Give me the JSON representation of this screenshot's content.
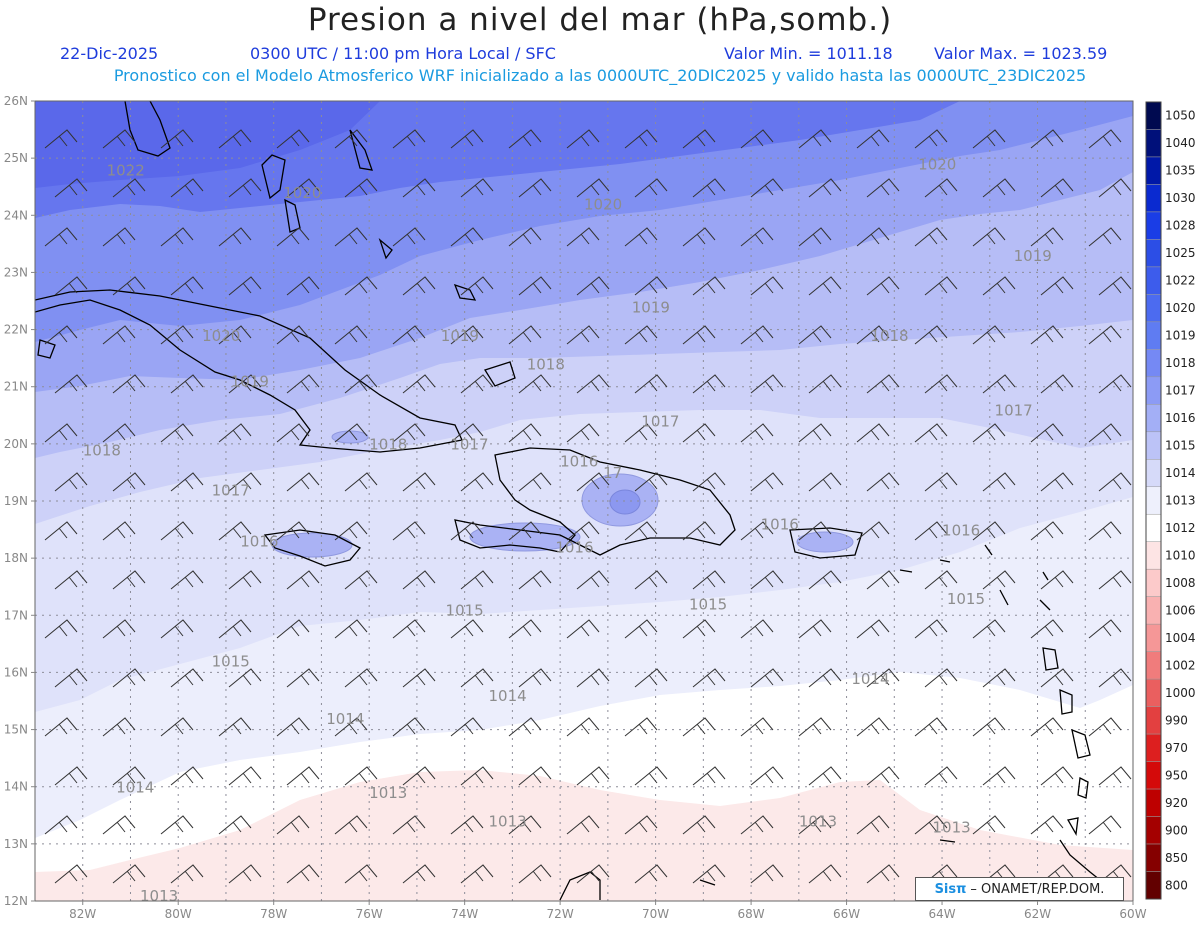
{
  "header": {
    "title": "Presion a nivel del mar (hPa,somb.)",
    "date": "22-Dic-2025",
    "time": "0300 UTC / 11:00 pm Hora Local / SFC",
    "min_label": "Valor Min. = 1011.18",
    "max_label": "Valor Max. = 1023.59",
    "subtitle": "Pronostico con el Modelo Atmosferico WRF inicializado a las 0000UTC_20DIC2025 y valido hasta las  0000UTC_23DIC2025"
  },
  "axes": {
    "lat_labels": [
      "26N",
      "25N",
      "24N",
      "23N",
      "22N",
      "21N",
      "20N",
      "19N",
      "18N",
      "17N",
      "16N",
      "15N",
      "14N",
      "13N",
      "12N"
    ],
    "lon_labels": [
      "82W",
      "80W",
      "78W",
      "76W",
      "74W",
      "72W",
      "70W",
      "68W",
      "66W",
      "64W",
      "62W",
      "60W"
    ]
  },
  "isobars": [
    {
      "value": "1022",
      "lon": -81.5,
      "lat": 24.7
    },
    {
      "value": "1020",
      "lon": -77.8,
      "lat": 24.3
    },
    {
      "value": "1020",
      "lon": -71.5,
      "lat": 24.1
    },
    {
      "value": "1020",
      "lon": -64.5,
      "lat": 24.8
    },
    {
      "value": "1019",
      "lon": -62.5,
      "lat": 23.2
    },
    {
      "value": "1019",
      "lon": -70.5,
      "lat": 22.3
    },
    {
      "value": "1019",
      "lon": -74.5,
      "lat": 21.8
    },
    {
      "value": "1020",
      "lon": -79.5,
      "lat": 21.8
    },
    {
      "value": "1019",
      "lon": -78.9,
      "lat": 21.0
    },
    {
      "value": "1018",
      "lon": -72.7,
      "lat": 21.3
    },
    {
      "value": "1018",
      "lon": -65.5,
      "lat": 21.8
    },
    {
      "value": "1017",
      "lon": -70.3,
      "lat": 20.3
    },
    {
      "value": "1017",
      "lon": -62.9,
      "lat": 20.5
    },
    {
      "value": "1017",
      "lon": -74.3,
      "lat": 19.9
    },
    {
      "value": "1018",
      "lon": -76.0,
      "lat": 19.9
    },
    {
      "value": "1018",
      "lon": -82.0,
      "lat": 19.8
    },
    {
      "value": "1017",
      "lon": -79.3,
      "lat": 19.1
    },
    {
      "value": "1016",
      "lon": -72.0,
      "lat": 19.6
    },
    {
      "value": "17",
      "lon": -71.1,
      "lat": 19.4
    },
    {
      "value": "1016",
      "lon": -78.7,
      "lat": 18.2
    },
    {
      "value": "1016",
      "lon": -72.1,
      "lat": 18.1
    },
    {
      "value": "1016",
      "lon": -67.8,
      "lat": 18.5
    },
    {
      "value": "1016",
      "lon": -64.0,
      "lat": 18.4
    },
    {
      "value": "1015",
      "lon": -63.9,
      "lat": 17.2
    },
    {
      "value": "1015",
      "lon": -74.4,
      "lat": 17.0
    },
    {
      "value": "1015",
      "lon": -69.3,
      "lat": 17.1
    },
    {
      "value": "1015",
      "lon": -79.3,
      "lat": 16.1
    },
    {
      "value": "1014",
      "lon": -65.9,
      "lat": 15.8
    },
    {
      "value": "1014",
      "lon": -73.5,
      "lat": 15.5
    },
    {
      "value": "1014",
      "lon": -76.9,
      "lat": 15.1
    },
    {
      "value": "1014",
      "lon": -81.3,
      "lat": 13.9
    },
    {
      "value": "1013",
      "lon": -76.0,
      "lat": 13.8
    },
    {
      "value": "1013",
      "lon": -73.5,
      "lat": 13.3
    },
    {
      "value": "1013",
      "lon": -67.0,
      "lat": 13.3
    },
    {
      "value": "1013",
      "lon": -64.2,
      "lat": 13.2
    },
    {
      "value": "1013",
      "lon": -80.8,
      "lat": 12.0
    }
  ],
  "colorbar": {
    "labels": [
      "1050",
      "1040",
      "1035",
      "1030",
      "1028",
      "1025",
      "1022",
      "1020",
      "1019",
      "1018",
      "1017",
      "1016",
      "1015",
      "1014",
      "1013",
      "1012",
      "1010",
      "1008",
      "1006",
      "1004",
      "1002",
      "1000",
      "990",
      "970",
      "950",
      "920",
      "900",
      "850",
      "800"
    ],
    "colors": [
      "#000a50",
      "#00107a",
      "#0018a8",
      "#0a2ad0",
      "#1a3de6",
      "#2c4ee6",
      "#3d5cec",
      "#4c6bf0",
      "#5f7cf2",
      "#7589f4",
      "#8c9bf5",
      "#a3aff6",
      "#bcc3f7",
      "#d6daf9",
      "#eef0fc",
      "#ffffff",
      "#fde4e4",
      "#fccaca",
      "#f9b1b1",
      "#f59797",
      "#f07c7c",
      "#ea5f5f",
      "#e34040",
      "#dd1f1f",
      "#d40a0a",
      "#be0000",
      "#a40000",
      "#850000",
      "#620000"
    ]
  },
  "logo": {
    "sis": "Sisπ",
    "rest": "– ONAMET/REP.DOM."
  }
}
